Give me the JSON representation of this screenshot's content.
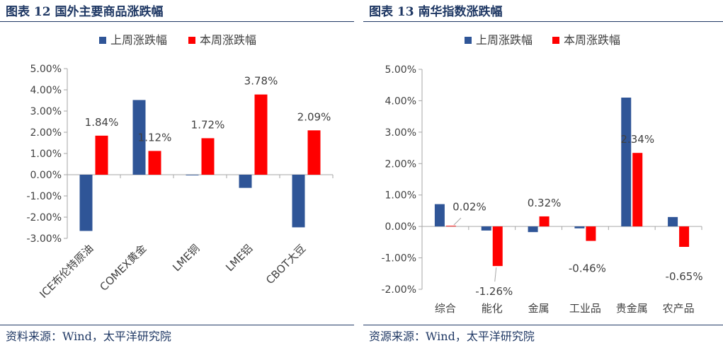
{
  "left": {
    "title": "图表 12  国外主要商品涨跌幅",
    "source": "资料来源：Wind，太平洋研究院"
  },
  "right": {
    "title": "图表 13  南华指数涨跌幅",
    "source": "资源来源：Wind，太平洋研究院"
  },
  "colors": {
    "series_0": "#2f5597",
    "series_1": "#ff0000",
    "heading": "#1f3864"
  },
  "chart_data": [
    {
      "type": "bar",
      "categories": [
        "ICE布伦特原油",
        "COMEX黄金",
        "LME铜",
        "LME铝",
        "CBOT大豆"
      ],
      "series": [
        {
          "name": "上周涨跌幅",
          "values": [
            -2.65,
            3.52,
            -0.03,
            -0.62,
            -2.48
          ]
        },
        {
          "name": "本周涨跌幅",
          "values": [
            1.84,
            1.12,
            1.72,
            3.78,
            2.09
          ]
        }
      ],
      "data_labels": [
        "1.84%",
        "1.12%",
        "1.72%",
        "3.78%",
        "2.09%"
      ],
      "y_ticks": [
        "5.00%",
        "4.00%",
        "3.00%",
        "2.00%",
        "1.00%",
        "0.00%",
        "-1.00%",
        "-2.00%",
        "-3.00%"
      ],
      "ylim": [
        -3,
        5
      ],
      "legend": "top",
      "grid": false
    },
    {
      "type": "bar",
      "categories": [
        "综合",
        "能化",
        "金属",
        "工业品",
        "贵金属",
        "农产品"
      ],
      "series": [
        {
          "name": "上周涨跌幅",
          "values": [
            0.71,
            -0.13,
            -0.18,
            -0.06,
            4.1,
            0.3
          ]
        },
        {
          "name": "本周涨跌幅",
          "values": [
            0.02,
            -1.26,
            0.32,
            -0.46,
            2.34,
            -0.65
          ]
        }
      ],
      "data_labels": [
        "0.02%",
        "-1.26%",
        "0.32%",
        "-0.46%",
        "2.34%",
        "-0.65%"
      ],
      "y_ticks": [
        "5.00%",
        "4.00%",
        "3.00%",
        "2.00%",
        "1.00%",
        "0.00%",
        "-1.00%",
        "-2.00%"
      ],
      "ylim": [
        -2,
        5
      ],
      "legend": "top",
      "grid": false
    }
  ]
}
